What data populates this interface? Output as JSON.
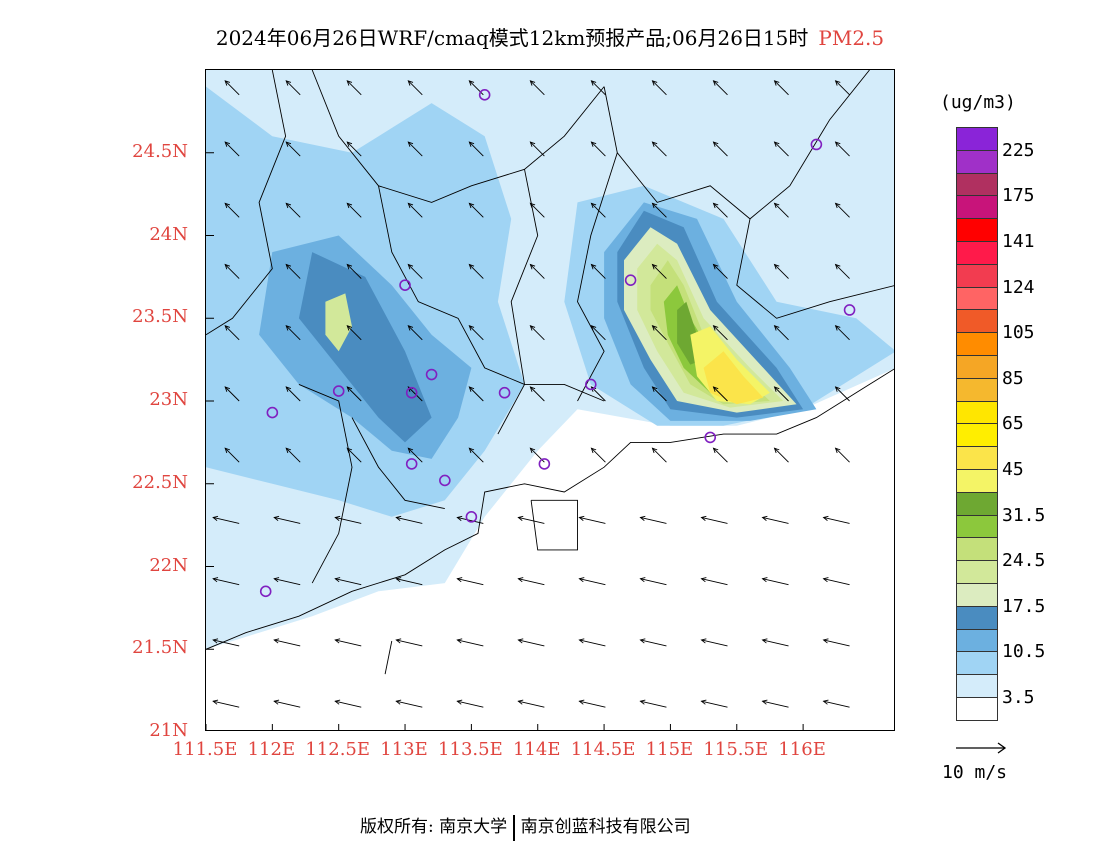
{
  "title": {
    "main": "2024年06月26日WRF/cmaq模式12km预报产品;06月26日15时",
    "variable": "PM2.5",
    "variable_color": "#e0453f"
  },
  "units": "(ug/m3)",
  "map": {
    "lon_range": [
      111.5,
      116.7
    ],
    "lat_range": [
      21.0,
      25.0
    ],
    "y_ticks": [
      "24.5N",
      "24N",
      "23.5N",
      "23N",
      "22.5N",
      "22N",
      "21.5N",
      "21N"
    ],
    "y_tick_values": [
      24.5,
      24.0,
      23.5,
      23.0,
      22.5,
      22.0,
      21.5,
      21.0
    ],
    "x_ticks": [
      "111.5E",
      "112E",
      "112.5E",
      "113E",
      "113.5E",
      "114E",
      "114.5E",
      "115E",
      "115.5E",
      "116E"
    ],
    "x_tick_values": [
      111.5,
      112.0,
      112.5,
      113.0,
      113.5,
      114.0,
      114.5,
      115.0,
      115.5,
      116.0
    ],
    "tick_color": "#e0453f",
    "stations": [
      [
        113.6,
        24.85
      ],
      [
        116.1,
        24.55
      ],
      [
        113.0,
        23.7
      ],
      [
        114.7,
        23.73
      ],
      [
        116.35,
        23.55
      ],
      [
        113.05,
        23.05
      ],
      [
        113.2,
        23.16
      ],
      [
        112.5,
        23.06
      ],
      [
        112.0,
        22.93
      ],
      [
        113.75,
        23.05
      ],
      [
        114.4,
        23.1
      ],
      [
        113.05,
        22.62
      ],
      [
        113.3,
        22.52
      ],
      [
        114.05,
        22.62
      ],
      [
        113.5,
        22.3
      ],
      [
        115.3,
        22.78
      ],
      [
        111.95,
        21.85
      ]
    ],
    "station_color": "#8020c0"
  },
  "legend": {
    "colors": [
      "#8a24d8",
      "#a030c8",
      "#b03060",
      "#c8147a",
      "#ff0000",
      "#ff1a4a",
      "#f23c50",
      "#ff6464",
      "#f05a28",
      "#ff8c00",
      "#f5a625",
      "#f5b82e",
      "#ffe600",
      "#ffee00",
      "#fbe44a",
      "#f4f466",
      "#6ea832",
      "#8cc83c",
      "#c4e07a",
      "#d2e89a",
      "#dcecc0",
      "#4a8cc0",
      "#6cb0e0",
      "#a0d4f4",
      "#d4ecfa",
      "#ffffff"
    ],
    "labels": [
      "225",
      "175",
      "141",
      "124",
      "105",
      "85",
      "65",
      "45",
      "31.5",
      "24.5",
      "17.5",
      "10.5",
      "3.5"
    ]
  },
  "wind_reference": "10 m/s",
  "footer": {
    "left": "版权所有: 南京大学",
    "right": "南京创蓝科技有限公司"
  }
}
